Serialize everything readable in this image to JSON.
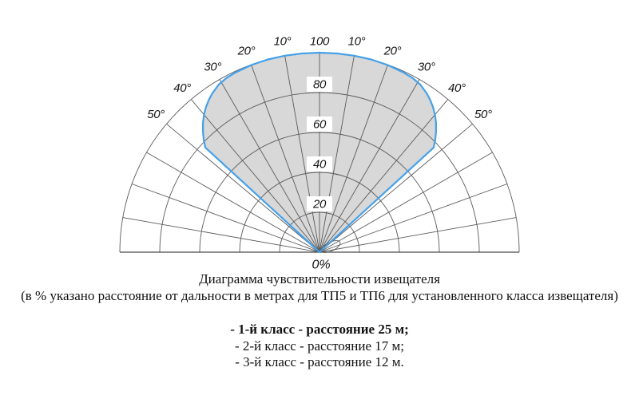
{
  "chart_data": {
    "type": "polar_lobe",
    "title": "Диаграмма чувствительности извещателя",
    "subtitle": "(в % указано расстояние от дальности в метрах для ТП5 и ТП6 для установленного класса извещателя)",
    "angle_labels": [
      "10°",
      "20°",
      "30°",
      "40°",
      "50°"
    ],
    "angle_grid_step_deg": 10,
    "angle_range_deg": [
      -90,
      90
    ],
    "radial_axis": {
      "min": 0,
      "max": 100,
      "step": 20,
      "boxed_labels": [
        "80",
        "60",
        "40",
        "20"
      ],
      "max_label": "100",
      "origin_label": "0%"
    },
    "lobe_polar_points": [
      [
        -47.5,
        0
      ],
      [
        -47.5,
        77.5
      ],
      [
        -46,
        80.5
      ],
      [
        -44,
        84
      ],
      [
        -42,
        87.2
      ],
      [
        -40,
        90
      ],
      [
        -38,
        92.3
      ],
      [
        -36,
        94.3
      ],
      [
        -34,
        96
      ],
      [
        -31,
        98
      ],
      [
        -28,
        99
      ],
      [
        -25,
        99.4
      ],
      [
        -20,
        99.8
      ],
      [
        -15,
        100
      ],
      [
        -10,
        100
      ],
      [
        -5,
        100
      ],
      [
        0,
        100
      ],
      [
        5,
        100
      ],
      [
        10,
        100
      ],
      [
        15,
        100
      ],
      [
        20,
        99.8
      ],
      [
        25,
        99.4
      ],
      [
        28,
        99
      ],
      [
        31,
        98
      ],
      [
        34,
        96
      ],
      [
        36,
        94.3
      ],
      [
        38,
        92.3
      ],
      [
        40,
        90
      ],
      [
        42,
        87.2
      ],
      [
        44,
        84
      ],
      [
        46,
        80.5
      ],
      [
        47.5,
        77.5
      ],
      [
        47.5,
        0
      ]
    ]
  },
  "class_list": {
    "items": [
      {
        "text": "- 1-й класс - расстояние 25 м;",
        "bold": true
      },
      {
        "text": "- 2-й класс - расстояние 17 м;",
        "bold": false
      },
      {
        "text": "- 3-й класс - расстояние 12 м.",
        "bold": false
      }
    ]
  },
  "colors": {
    "lobe_fill": "#d8d8d8",
    "lobe_stroke": "#45a1e9",
    "grid": "#5a5a5a",
    "baseline": "#4a4a4a",
    "text": "#161616",
    "label_box": "#ffffff"
  }
}
